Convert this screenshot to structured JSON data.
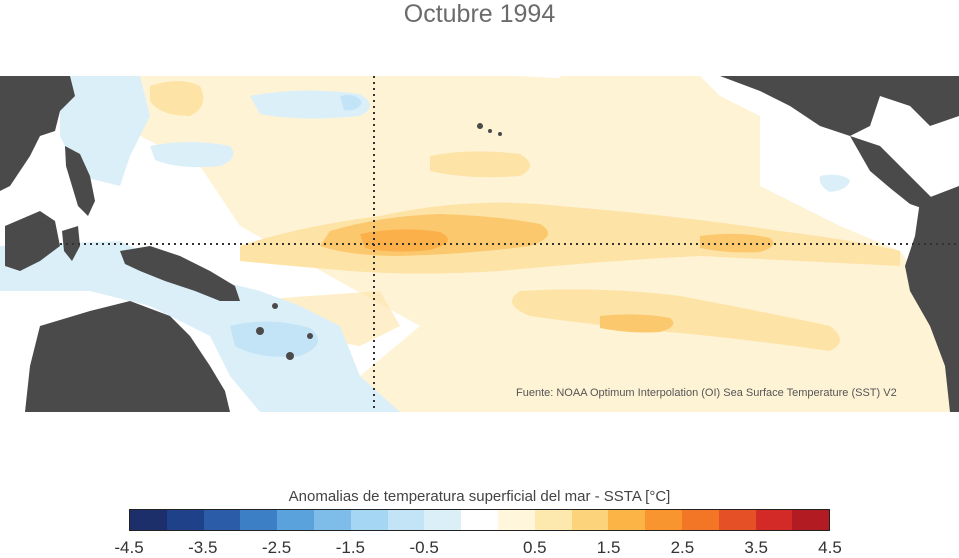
{
  "title": "Octubre 1994",
  "source": "Fuente: NOAA Optimum Interpolation (OI) Sea Surface Temperature (SST) V2",
  "colorbar": {
    "title": "Anomalias de temperatura superficial del mar - SSTA  [°C]",
    "colors": [
      "#1c2f6b",
      "#1f4189",
      "#2a5ca8",
      "#3c7fc4",
      "#5aa2db",
      "#7ebde9",
      "#a5d7f4",
      "#c2e4f6",
      "#dbeff9",
      "#ffffff",
      "#fff6dc",
      "#fde9ad",
      "#fcd27a",
      "#fbb445",
      "#f8952e",
      "#f27626",
      "#e55027",
      "#d42a27",
      "#b31b22"
    ],
    "ticks": [
      "-4.5",
      "-3.5",
      "-2.5",
      "-1.5",
      "-0.5",
      "0.5",
      "1.5",
      "2.5",
      "3.5",
      "4.5"
    ],
    "range": [
      -4.5,
      4.5
    ],
    "step": 0.5
  },
  "map_colors": {
    "land": "#4a4a4a",
    "ocean_neutral": "#ffffff",
    "warm_weak": "#fff3d6",
    "warm_moderate": "#fde3a6",
    "warm_strong": "#fcc86e",
    "warm_peak": "#fbb04a",
    "cool_weak": "#dbeff9",
    "cool_moderate": "#c2e4f6"
  }
}
